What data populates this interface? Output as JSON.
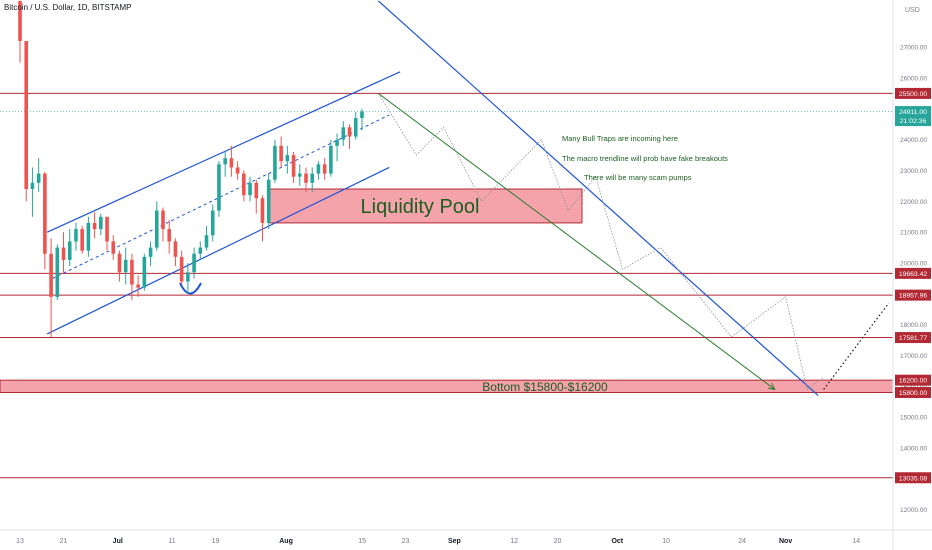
{
  "header": {
    "title": "Bitcoin / U.S. Dollar, 1D, BITSTAMP"
  },
  "axis": {
    "currency": "USD"
  },
  "current": {
    "price": "24911.00",
    "countdown": "21:02:36",
    "color": "#26a69a"
  },
  "levels": [
    {
      "label": "25500.00",
      "value": 25500
    },
    {
      "label": "19663.42",
      "value": 19663.42
    },
    {
      "label": "18957.96",
      "value": 18957.96
    },
    {
      "label": "17581.77",
      "value": 17581.77
    },
    {
      "label": "16200.00",
      "value": 16200
    },
    {
      "label": "15800.00",
      "value": 15800
    },
    {
      "label": "13035.08",
      "value": 13035.08
    }
  ],
  "zones": {
    "liquidity": {
      "label": "Liquidity Pool",
      "from": 21300,
      "to": 22400,
      "start": "Jul 28",
      "end": "Aug 20"
    },
    "bottom": {
      "label": "Bottom $15800-$16200",
      "from": 15800,
      "to": 16200
    }
  },
  "annotations": [
    "Many Bull Traps are incoming here",
    "The macro trendline will prob have fake breakouts",
    "There will be many scam pumps"
  ],
  "colors": {
    "up": "#26a69a",
    "down": "#ef5350",
    "level": "#b22833",
    "zone": "#f4a3ab",
    "zone_text": "#1b5e20",
    "trend": "#1e53d6",
    "projection": "#2e7d32",
    "text": "#131722",
    "axis_text": "#787b86"
  },
  "chart_data": {
    "type": "candlestick",
    "y_axis_ticks": [
      12000,
      13000,
      14000,
      15000,
      16000,
      17000,
      18000,
      19000,
      20000,
      21000,
      22000,
      23000,
      24000,
      25000,
      26000,
      27000
    ],
    "x_axis_ticks": [
      "13",
      "21",
      "Jul",
      "11",
      "19",
      "Aug",
      "15",
      "23",
      "Sep",
      "12",
      "20",
      "Oct",
      "10",
      "24",
      "Nov",
      "14"
    ],
    "ylim": [
      11600,
      28400
    ],
    "candles": [
      [
        28500,
        28500,
        26500,
        27200
      ],
      [
        27200,
        27200,
        22000,
        22400
      ],
      [
        22400,
        23100,
        21500,
        22600
      ],
      [
        22600,
        23400,
        22300,
        22900
      ],
      [
        22900,
        22950,
        19800,
        20300
      ],
      [
        20300,
        20800,
        17600,
        18900
      ],
      [
        18900,
        20600,
        18800,
        20500
      ],
      [
        20500,
        21000,
        19700,
        20100
      ],
      [
        20100,
        21100,
        19900,
        20700
      ],
      [
        20700,
        21300,
        20400,
        21100
      ],
      [
        21100,
        21200,
        20300,
        20400
      ],
      [
        20400,
        21500,
        20200,
        21300
      ],
      [
        21300,
        21650,
        20800,
        21100
      ],
      [
        21100,
        21600,
        20900,
        21500
      ],
      [
        21500,
        21400,
        20400,
        20700
      ],
      [
        20700,
        20900,
        20100,
        20300
      ],
      [
        20300,
        20400,
        19400,
        19700
      ],
      [
        19700,
        20500,
        19300,
        20100
      ],
      [
        20100,
        20300,
        18800,
        19300
      ],
      [
        19300,
        19600,
        18900,
        19200
      ],
      [
        19200,
        20300,
        19100,
        20200
      ],
      [
        20200,
        20700,
        19900,
        20500
      ],
      [
        20500,
        22000,
        20400,
        21700
      ],
      [
        21700,
        21800,
        20700,
        21100
      ],
      [
        21100,
        21400,
        20300,
        20700
      ],
      [
        20700,
        20800,
        19900,
        20200
      ],
      [
        20200,
        20400,
        19300,
        19400
      ],
      [
        19400,
        20000,
        19000,
        19700
      ],
      [
        19700,
        20500,
        19500,
        20300
      ],
      [
        20300,
        20700,
        20100,
        20500
      ],
      [
        20500,
        21200,
        20400,
        20900
      ],
      [
        20900,
        21900,
        20700,
        21700
      ],
      [
        21700,
        23300,
        21500,
        23200
      ],
      [
        23200,
        23600,
        22800,
        23400
      ],
      [
        23400,
        23800,
        22800,
        23100
      ],
      [
        23100,
        23300,
        22700,
        22900
      ],
      [
        22900,
        23000,
        22000,
        22200
      ],
      [
        22200,
        22800,
        22000,
        22600
      ],
      [
        22600,
        22700,
        21600,
        22100
      ],
      [
        22100,
        22200,
        20700,
        21300
      ],
      [
        21300,
        22900,
        21100,
        22700
      ],
      [
        22700,
        24000,
        22600,
        23800
      ],
      [
        23800,
        24100,
        23100,
        23300
      ],
      [
        23300,
        23800,
        22900,
        23500
      ],
      [
        23500,
        23600,
        22600,
        22800
      ],
      [
        22800,
        23200,
        22500,
        22900
      ],
      [
        22900,
        23100,
        22300,
        22600
      ],
      [
        22600,
        23100,
        22300,
        22900
      ],
      [
        22900,
        23300,
        22700,
        23200
      ],
      [
        23200,
        23400,
        22700,
        22900
      ],
      [
        22900,
        24000,
        22800,
        23800
      ],
      [
        23800,
        24200,
        23300,
        24000
      ],
      [
        24000,
        24600,
        23800,
        24400
      ],
      [
        24400,
        24500,
        23700,
        24100
      ],
      [
        24100,
        24900,
        24000,
        24700
      ],
      [
        24700,
        25000,
        24300,
        24911
      ]
    ],
    "channel": {
      "upper": [
        [
          "Jun 18",
          21000
        ],
        [
          "Aug 22",
          26200
        ]
      ],
      "lower": [
        [
          "Jun 18",
          17700
        ],
        [
          "Aug 20",
          23100
        ]
      ],
      "mid": [
        [
          "Jun 19",
          19500
        ],
        [
          "Aug 20",
          24800
        ]
      ]
    },
    "macro_trendline": [
      [
        "Aug 18",
        28500
      ],
      [
        "Nov 07",
        15700
      ]
    ],
    "projection": [
      [
        "Aug 18",
        25500
      ],
      [
        "Oct 30",
        15900
      ]
    ],
    "path_points": [
      [
        "Aug 18",
        25500
      ],
      [
        "Aug 25",
        23500
      ],
      [
        "Aug 30",
        24400
      ],
      [
        "Sep 06",
        22000
      ],
      [
        "Sep 17",
        24000
      ],
      [
        "Sep 22",
        21700
      ],
      [
        "Sep 27",
        22800
      ],
      [
        "Oct 02",
        19800
      ],
      [
        "Oct 09",
        20500
      ],
      [
        "Oct 22",
        17600
      ],
      [
        "Nov 01",
        18900
      ],
      [
        "Nov 05",
        15900
      ],
      [
        "Nov 08",
        16300
      ]
    ],
    "recovery": [
      [
        "Nov 08",
        15900
      ],
      [
        "Nov 20",
        18700
      ]
    ]
  }
}
